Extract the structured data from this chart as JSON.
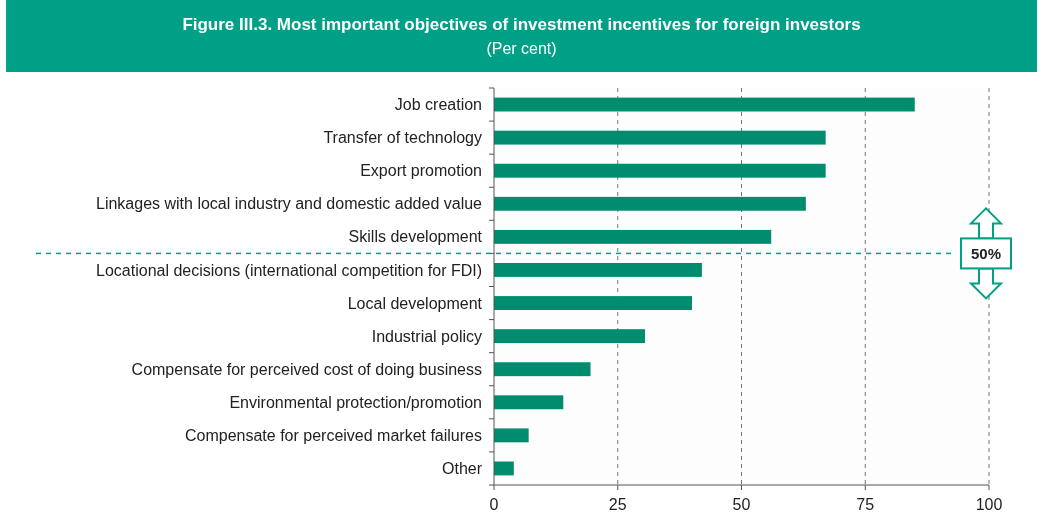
{
  "chart_data": {
    "type": "bar",
    "orientation": "horizontal",
    "title": "Figure III.3. Most important objectives of investment incentives for foreign investors",
    "subtitle": "(Per cent)",
    "categories": [
      "Job creation",
      "Transfer of technology",
      "Export promotion",
      "Linkages with local industry and domestic added value",
      "Skills development",
      "Locational decisions (international competition for FDI)",
      "Local development",
      "Industrial policy",
      "Compensate for perceived cost of doing business",
      "Environmental protection/promotion",
      "Compensate for perceived market failures",
      "Other"
    ],
    "values": [
      85,
      67,
      67,
      63,
      56,
      42,
      40,
      30.5,
      19.5,
      14,
      7,
      4
    ],
    "color": "#008c6e",
    "xlim": [
      0,
      100
    ],
    "xticks": [
      0,
      25,
      50,
      75,
      100
    ],
    "grid": "x",
    "annotations": [
      "50%"
    ]
  }
}
